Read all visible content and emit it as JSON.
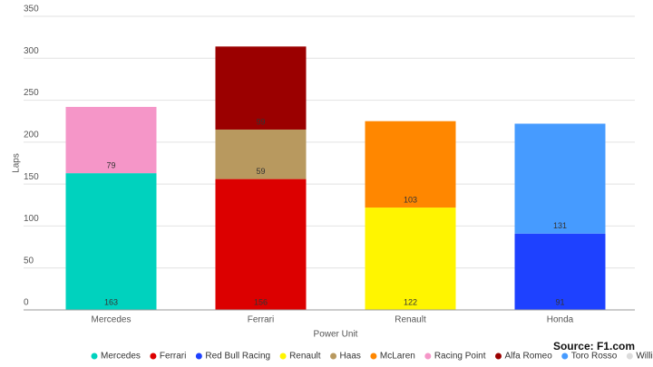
{
  "chart_data": {
    "type": "stacked_bar",
    "x_label": "Power Unit",
    "y_label": "Laps",
    "source": "Source: F1.com",
    "categories": [
      "Mercedes",
      "Ferrari",
      "Renault",
      "Honda"
    ],
    "series": [
      {
        "name": "Mercedes",
        "color": "#00d2be",
        "values": [
          163,
          null,
          null,
          null
        ]
      },
      {
        "name": "Ferrari",
        "color": "#dc0000",
        "values": [
          null,
          156,
          null,
          null
        ]
      },
      {
        "name": "Red Bull Racing",
        "color": "#1e41ff",
        "values": [
          null,
          null,
          null,
          91
        ]
      },
      {
        "name": "Renault",
        "color": "#fff500",
        "values": [
          null,
          null,
          122,
          null
        ]
      },
      {
        "name": "Haas",
        "color": "#b8995f",
        "values": [
          null,
          59,
          null,
          null
        ]
      },
      {
        "name": "McLaren",
        "color": "#ff8700",
        "values": [
          null,
          null,
          103,
          null
        ]
      },
      {
        "name": "Racing Point",
        "color": "#f596c8",
        "values": [
          79,
          null,
          null,
          null
        ]
      },
      {
        "name": "Alfa Romeo",
        "color": "#9b0000",
        "values": [
          null,
          99,
          null,
          null
        ]
      },
      {
        "name": "Toro Rosso",
        "color": "#469bff",
        "values": [
          null,
          null,
          null,
          131
        ]
      },
      {
        "name": "Williams",
        "color": "#dcdcdc",
        "values": [
          null,
          null,
          null,
          null
        ]
      }
    ],
    "ylim": [
      0,
      350
    ],
    "yticks": [
      0,
      50,
      100,
      150,
      200,
      250,
      300,
      350
    ],
    "grid": true
  }
}
